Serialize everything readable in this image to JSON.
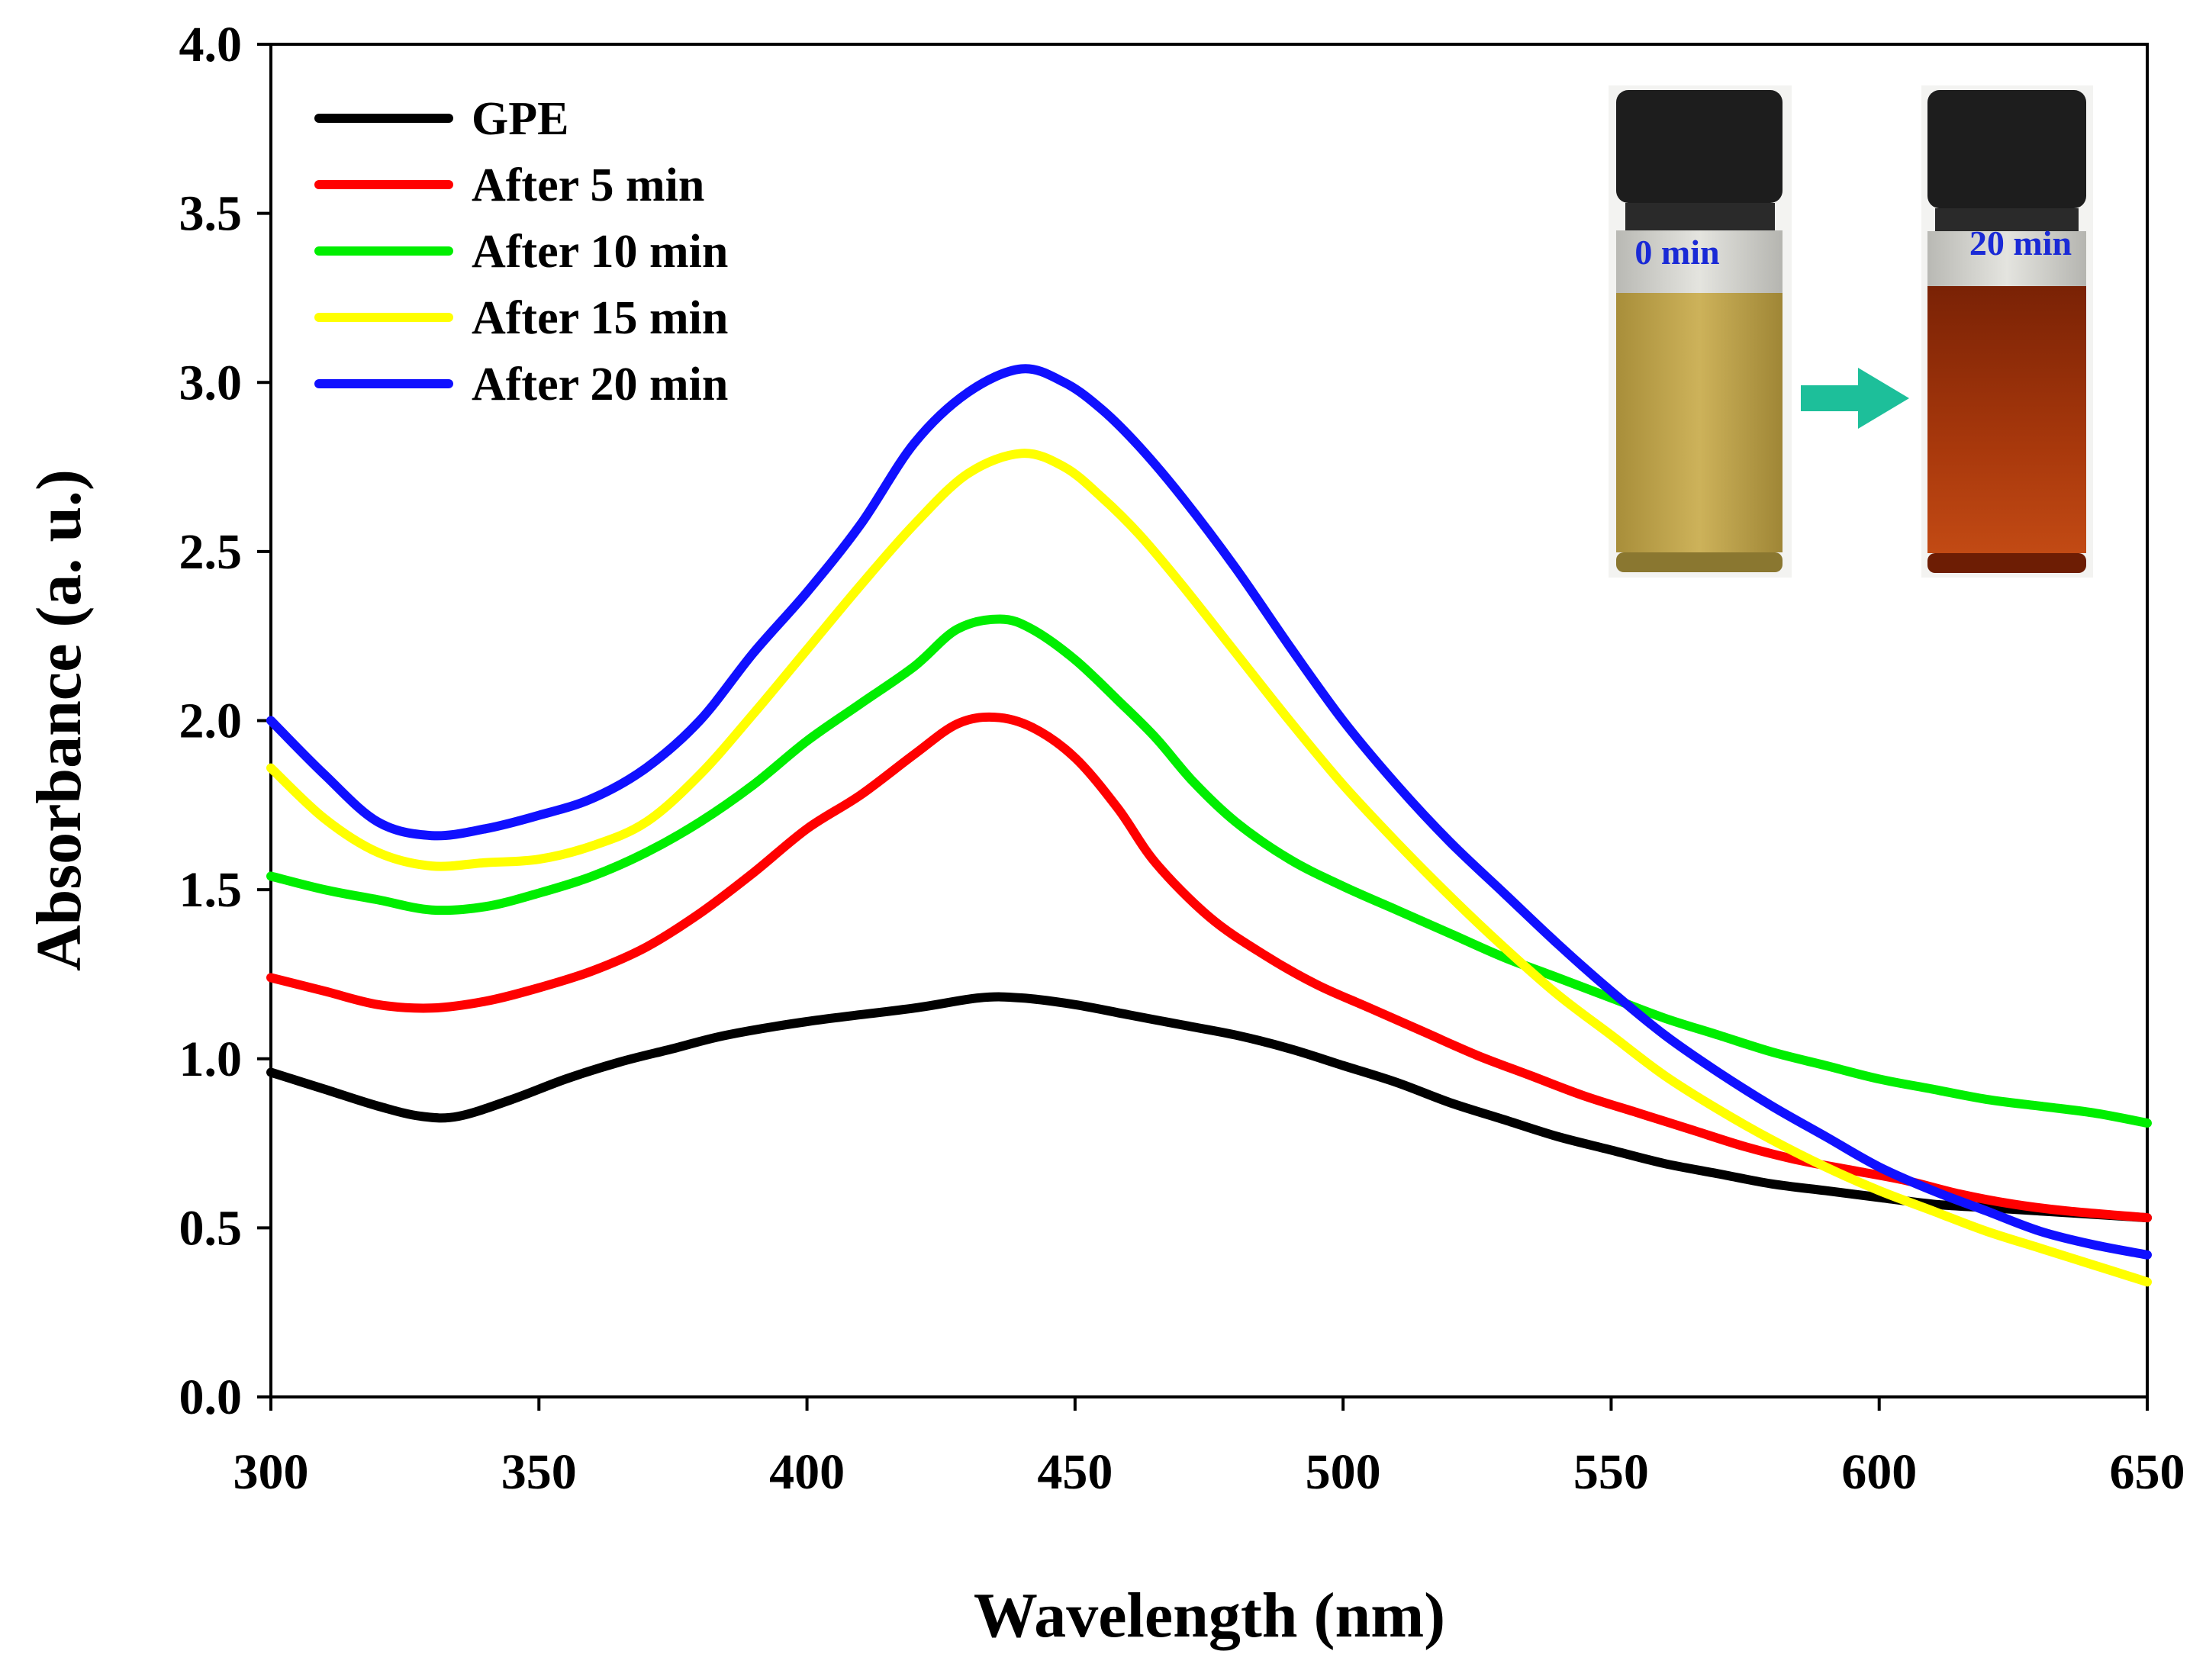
{
  "chart_data": {
    "type": "line",
    "xlabel": "Wavelength (nm)",
    "ylabel": "Absorbance (a. u.)",
    "xlim": [
      300,
      650
    ],
    "ylim": [
      0.0,
      4.0
    ],
    "x_ticks": [
      "300",
      "350",
      "400",
      "450",
      "500",
      "550",
      "600",
      "650"
    ],
    "y_ticks": [
      "0.0",
      "0.5",
      "1.0",
      "1.5",
      "2.0",
      "2.5",
      "3.0",
      "3.5",
      "4.0"
    ],
    "legend_position": "top-left",
    "series": [
      {
        "name": "GPE",
        "color": "#000000",
        "points": [
          [
            300,
            0.96
          ],
          [
            310,
            0.91
          ],
          [
            320,
            0.86
          ],
          [
            328,
            0.83
          ],
          [
            335,
            0.83
          ],
          [
            345,
            0.88
          ],
          [
            355,
            0.94
          ],
          [
            365,
            0.99
          ],
          [
            375,
            1.03
          ],
          [
            385,
            1.07
          ],
          [
            400,
            1.11
          ],
          [
            420,
            1.15
          ],
          [
            432,
            1.18
          ],
          [
            440,
            1.18
          ],
          [
            450,
            1.16
          ],
          [
            460,
            1.13
          ],
          [
            470,
            1.1
          ],
          [
            480,
            1.07
          ],
          [
            490,
            1.03
          ],
          [
            500,
            0.98
          ],
          [
            510,
            0.93
          ],
          [
            520,
            0.87
          ],
          [
            530,
            0.82
          ],
          [
            540,
            0.77
          ],
          [
            550,
            0.73
          ],
          [
            560,
            0.69
          ],
          [
            570,
            0.66
          ],
          [
            580,
            0.63
          ],
          [
            590,
            0.61
          ],
          [
            600,
            0.59
          ],
          [
            610,
            0.57
          ],
          [
            620,
            0.56
          ],
          [
            630,
            0.55
          ],
          [
            640,
            0.54
          ],
          [
            650,
            0.53
          ]
        ]
      },
      {
        "name": "After 5 min",
        "color": "#ff0000",
        "points": [
          [
            300,
            1.24
          ],
          [
            310,
            1.2
          ],
          [
            320,
            1.16
          ],
          [
            330,
            1.15
          ],
          [
            340,
            1.17
          ],
          [
            350,
            1.21
          ],
          [
            360,
            1.26
          ],
          [
            370,
            1.33
          ],
          [
            380,
            1.43
          ],
          [
            390,
            1.55
          ],
          [
            400,
            1.68
          ],
          [
            410,
            1.78
          ],
          [
            420,
            1.9
          ],
          [
            428,
            1.99
          ],
          [
            435,
            2.01
          ],
          [
            442,
            1.98
          ],
          [
            450,
            1.89
          ],
          [
            458,
            1.74
          ],
          [
            465,
            1.58
          ],
          [
            475,
            1.42
          ],
          [
            485,
            1.31
          ],
          [
            495,
            1.22
          ],
          [
            505,
            1.15
          ],
          [
            515,
            1.08
          ],
          [
            525,
            1.01
          ],
          [
            535,
            0.95
          ],
          [
            545,
            0.89
          ],
          [
            555,
            0.84
          ],
          [
            565,
            0.79
          ],
          [
            575,
            0.74
          ],
          [
            585,
            0.7
          ],
          [
            595,
            0.67
          ],
          [
            605,
            0.64
          ],
          [
            615,
            0.6
          ],
          [
            625,
            0.57
          ],
          [
            635,
            0.55
          ],
          [
            650,
            0.53
          ]
        ]
      },
      {
        "name": "After 10 min",
        "color": "#00ee00",
        "points": [
          [
            300,
            1.54
          ],
          [
            310,
            1.5
          ],
          [
            320,
            1.47
          ],
          [
            330,
            1.44
          ],
          [
            340,
            1.45
          ],
          [
            350,
            1.49
          ],
          [
            360,
            1.54
          ],
          [
            370,
            1.61
          ],
          [
            380,
            1.7
          ],
          [
            390,
            1.81
          ],
          [
            400,
            1.94
          ],
          [
            410,
            2.05
          ],
          [
            420,
            2.16
          ],
          [
            428,
            2.27
          ],
          [
            436,
            2.3
          ],
          [
            442,
            2.27
          ],
          [
            450,
            2.18
          ],
          [
            458,
            2.06
          ],
          [
            465,
            1.95
          ],
          [
            472,
            1.82
          ],
          [
            480,
            1.7
          ],
          [
            490,
            1.59
          ],
          [
            500,
            1.51
          ],
          [
            510,
            1.44
          ],
          [
            520,
            1.37
          ],
          [
            530,
            1.3
          ],
          [
            540,
            1.24
          ],
          [
            550,
            1.18
          ],
          [
            560,
            1.12
          ],
          [
            570,
            1.07
          ],
          [
            580,
            1.02
          ],
          [
            590,
            0.98
          ],
          [
            600,
            0.94
          ],
          [
            610,
            0.91
          ],
          [
            620,
            0.88
          ],
          [
            630,
            0.86
          ],
          [
            640,
            0.84
          ],
          [
            650,
            0.81
          ]
        ]
      },
      {
        "name": "After 15 min",
        "color": "#ffff00",
        "points": [
          [
            300,
            1.86
          ],
          [
            310,
            1.71
          ],
          [
            320,
            1.61
          ],
          [
            330,
            1.57
          ],
          [
            340,
            1.58
          ],
          [
            350,
            1.59
          ],
          [
            360,
            1.63
          ],
          [
            370,
            1.7
          ],
          [
            380,
            1.84
          ],
          [
            390,
            2.02
          ],
          [
            400,
            2.21
          ],
          [
            410,
            2.4
          ],
          [
            420,
            2.58
          ],
          [
            430,
            2.73
          ],
          [
            440,
            2.79
          ],
          [
            448,
            2.75
          ],
          [
            455,
            2.66
          ],
          [
            462,
            2.55
          ],
          [
            470,
            2.4
          ],
          [
            480,
            2.2
          ],
          [
            490,
            2.0
          ],
          [
            500,
            1.81
          ],
          [
            510,
            1.64
          ],
          [
            520,
            1.48
          ],
          [
            530,
            1.33
          ],
          [
            540,
            1.19
          ],
          [
            550,
            1.07
          ],
          [
            560,
            0.95
          ],
          [
            570,
            0.85
          ],
          [
            580,
            0.76
          ],
          [
            590,
            0.68
          ],
          [
            600,
            0.61
          ],
          [
            610,
            0.55
          ],
          [
            620,
            0.49
          ],
          [
            630,
            0.44
          ],
          [
            640,
            0.39
          ],
          [
            650,
            0.34
          ]
        ]
      },
      {
        "name": "After 20 min",
        "color": "#1010ff",
        "points": [
          [
            300,
            2.0
          ],
          [
            310,
            1.84
          ],
          [
            320,
            1.7
          ],
          [
            330,
            1.66
          ],
          [
            340,
            1.68
          ],
          [
            350,
            1.72
          ],
          [
            360,
            1.77
          ],
          [
            370,
            1.86
          ],
          [
            380,
            2.0
          ],
          [
            390,
            2.2
          ],
          [
            400,
            2.38
          ],
          [
            410,
            2.58
          ],
          [
            420,
            2.82
          ],
          [
            430,
            2.97
          ],
          [
            440,
            3.04
          ],
          [
            448,
            3.0
          ],
          [
            455,
            2.92
          ],
          [
            462,
            2.81
          ],
          [
            470,
            2.66
          ],
          [
            480,
            2.45
          ],
          [
            490,
            2.22
          ],
          [
            500,
            2.0
          ],
          [
            510,
            1.81
          ],
          [
            520,
            1.64
          ],
          [
            530,
            1.49
          ],
          [
            540,
            1.34
          ],
          [
            550,
            1.2
          ],
          [
            560,
            1.07
          ],
          [
            570,
            0.96
          ],
          [
            580,
            0.86
          ],
          [
            590,
            0.77
          ],
          [
            600,
            0.68
          ],
          [
            610,
            0.61
          ],
          [
            620,
            0.55
          ],
          [
            630,
            0.49
          ],
          [
            640,
            0.45
          ],
          [
            650,
            0.42
          ]
        ]
      }
    ],
    "inset": {
      "vial_before_label": "0 min",
      "vial_after_label": "20 min",
      "vial_before_color": "#c2a64a",
      "vial_after_color": "#9c2e08",
      "arrow_color": "#1dbf9a"
    }
  }
}
